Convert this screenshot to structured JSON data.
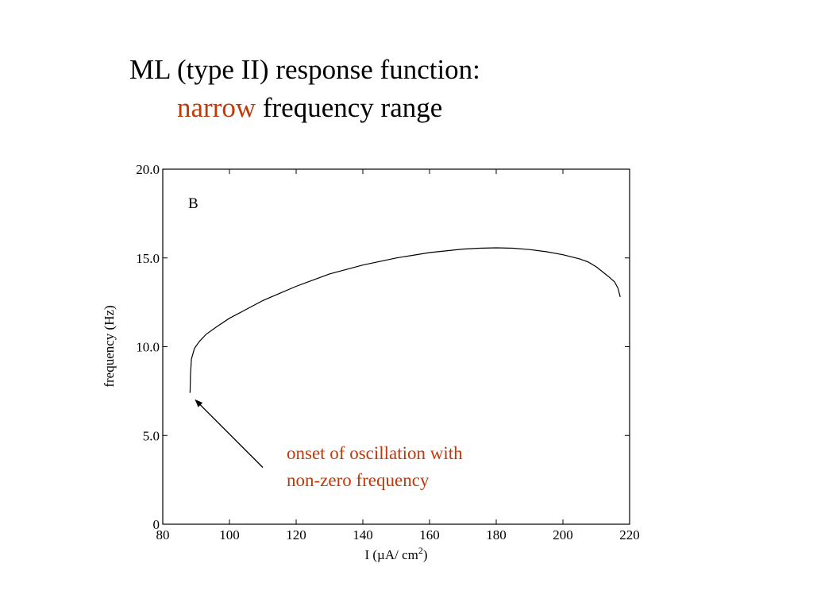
{
  "slide": {
    "title_line1": "ML (type II) response function:",
    "title_line2_highlight": "narrow",
    "title_line2_rest": " frequency range",
    "accent_color": "#c0390b"
  },
  "chart_data": {
    "type": "line",
    "panel_label": "B",
    "xlabel": "I (µA/ cm",
    "xlabel_superscript": "2",
    "xlabel_close": ")",
    "ylabel": "frequency (Hz)",
    "xlim": [
      80,
      220
    ],
    "ylim": [
      0,
      20
    ],
    "xticks": [
      80,
      100,
      120,
      140,
      160,
      180,
      200,
      220
    ],
    "xtick_labels": [
      "80",
      "100",
      "120",
      "140",
      "160",
      "180",
      "200",
      "220"
    ],
    "yticks": [
      0,
      5,
      10,
      15,
      20
    ],
    "ytick_labels": [
      "0",
      "5.0",
      "10.0",
      "15.0",
      "20.0"
    ],
    "grid": false,
    "series": [
      {
        "x": [
          88.2,
          88.3,
          88.6,
          89.5,
          91,
          93,
          96,
          100,
          105,
          110,
          115,
          120,
          130,
          140,
          150,
          160,
          170,
          175,
          180,
          185,
          190,
          195,
          200,
          205,
          207.5,
          210,
          212,
          214,
          215.5,
          216.5,
          217.2
        ],
        "y": [
          7.4,
          8.4,
          9.3,
          9.9,
          10.3,
          10.7,
          11.1,
          11.6,
          12.1,
          12.6,
          13.0,
          13.4,
          14.1,
          14.6,
          15.0,
          15.3,
          15.5,
          15.55,
          15.57,
          15.55,
          15.47,
          15.35,
          15.18,
          14.95,
          14.78,
          14.5,
          14.2,
          13.9,
          13.65,
          13.3,
          12.8
        ]
      }
    ],
    "annotation": {
      "line1": "onset of oscillation with",
      "line2": "non-zero frequency",
      "color": "#c0390b",
      "arrow_to": [
        89.8,
        7.0
      ],
      "arrow_from": [
        110,
        3.2
      ]
    }
  }
}
